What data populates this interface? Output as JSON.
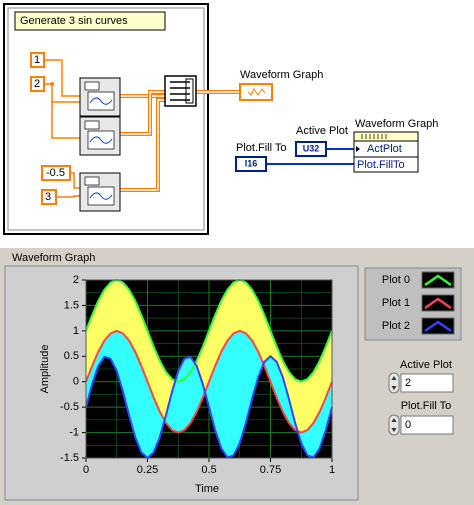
{
  "diagram": {
    "label": "Generate 3 sin curves",
    "constants": [
      "1",
      "2",
      "-0.5",
      "3"
    ],
    "graph_terminal": "Waveform Graph",
    "active_plot": {
      "label": "Active Plot",
      "type": "U32"
    },
    "fill_to": {
      "label": "Plot.Fill To",
      "type": "I16"
    },
    "property_node": {
      "label": "Waveform Graph",
      "properties": [
        "ActPlot",
        "Plot.FillTo"
      ]
    }
  },
  "panel": {
    "controls": [
      {
        "label": "Active Plot",
        "value": 2
      },
      {
        "label": "Plot.Fill To",
        "value": 0
      }
    ]
  },
  "chart_data": {
    "type": "line",
    "title": "Waveform Graph",
    "x_label": "Time",
    "y_label": "Amplitude",
    "x": [
      0,
      0.025,
      0.05,
      0.075,
      0.1,
      0.125,
      0.15,
      0.175,
      0.2,
      0.225,
      0.25,
      0.275,
      0.3,
      0.325,
      0.35,
      0.375,
      0.4,
      0.425,
      0.45,
      0.475,
      0.5,
      0.525,
      0.55,
      0.575,
      0.6,
      0.625,
      0.65,
      0.675,
      0.7,
      0.725,
      0.75,
      0.775,
      0.8,
      0.825,
      0.85,
      0.875,
      0.9,
      0.925,
      0.95,
      0.975,
      1
    ],
    "series": [
      {
        "name": "Plot 0",
        "color": "#33ff33",
        "fill_to": 1,
        "fill_color": "#ffff66",
        "values": [
          1,
          1.31,
          1.59,
          1.81,
          1.95,
          2,
          1.95,
          1.81,
          1.59,
          1.31,
          1,
          0.69,
          0.41,
          0.19,
          0.05,
          0,
          0.05,
          0.19,
          0.41,
          0.69,
          1,
          1.31,
          1.59,
          1.81,
          1.95,
          2,
          1.95,
          1.81,
          1.59,
          1.31,
          1,
          0.69,
          0.41,
          0.19,
          0.05,
          0,
          0.05,
          0.19,
          0.41,
          0.69,
          1
        ]
      },
      {
        "name": "Plot 1",
        "color": "#ff4444",
        "fill_to": 2,
        "fill_color": "#33ffff",
        "values": [
          0,
          0.31,
          0.59,
          0.81,
          0.95,
          1,
          0.95,
          0.81,
          0.59,
          0.31,
          0,
          -0.31,
          -0.59,
          -0.81,
          -0.95,
          -1,
          -0.95,
          -0.81,
          -0.59,
          -0.31,
          0,
          0.31,
          0.59,
          0.81,
          0.95,
          1,
          0.95,
          0.81,
          0.59,
          0.31,
          0,
          -0.31,
          -0.59,
          -0.81,
          -0.95,
          -1,
          -0.95,
          -0.81,
          -0.59,
          -0.31,
          0
        ]
      },
      {
        "name": "Plot 2",
        "color": "#3344ff",
        "values": [
          -0.5,
          -0.05,
          0.31,
          0.49,
          0.45,
          0.21,
          -0.19,
          -0.66,
          -1.09,
          -1.39,
          -1.5,
          -1.39,
          -1.09,
          -0.66,
          -0.19,
          0.21,
          0.45,
          0.49,
          0.31,
          -0.05,
          -0.5,
          -0.95,
          -1.31,
          -1.49,
          -1.45,
          -1.21,
          -0.81,
          -0.34,
          0.09,
          0.39,
          0.5,
          0.39,
          0.09,
          -0.34,
          -0.81,
          -1.21,
          -1.45,
          -1.49,
          -1.31,
          -0.95,
          -0.5
        ]
      }
    ],
    "xlim": [
      0,
      1
    ],
    "xticks": [
      0,
      0.25,
      0.5,
      0.75,
      1
    ],
    "ylim": [
      -1.5,
      2
    ],
    "yticks": [
      2,
      1.5,
      1,
      0.5,
      0,
      -0.5,
      -1,
      -1.5
    ],
    "grid": true,
    "grid_color": "#1f7a1f",
    "plot_background": "#000000"
  }
}
